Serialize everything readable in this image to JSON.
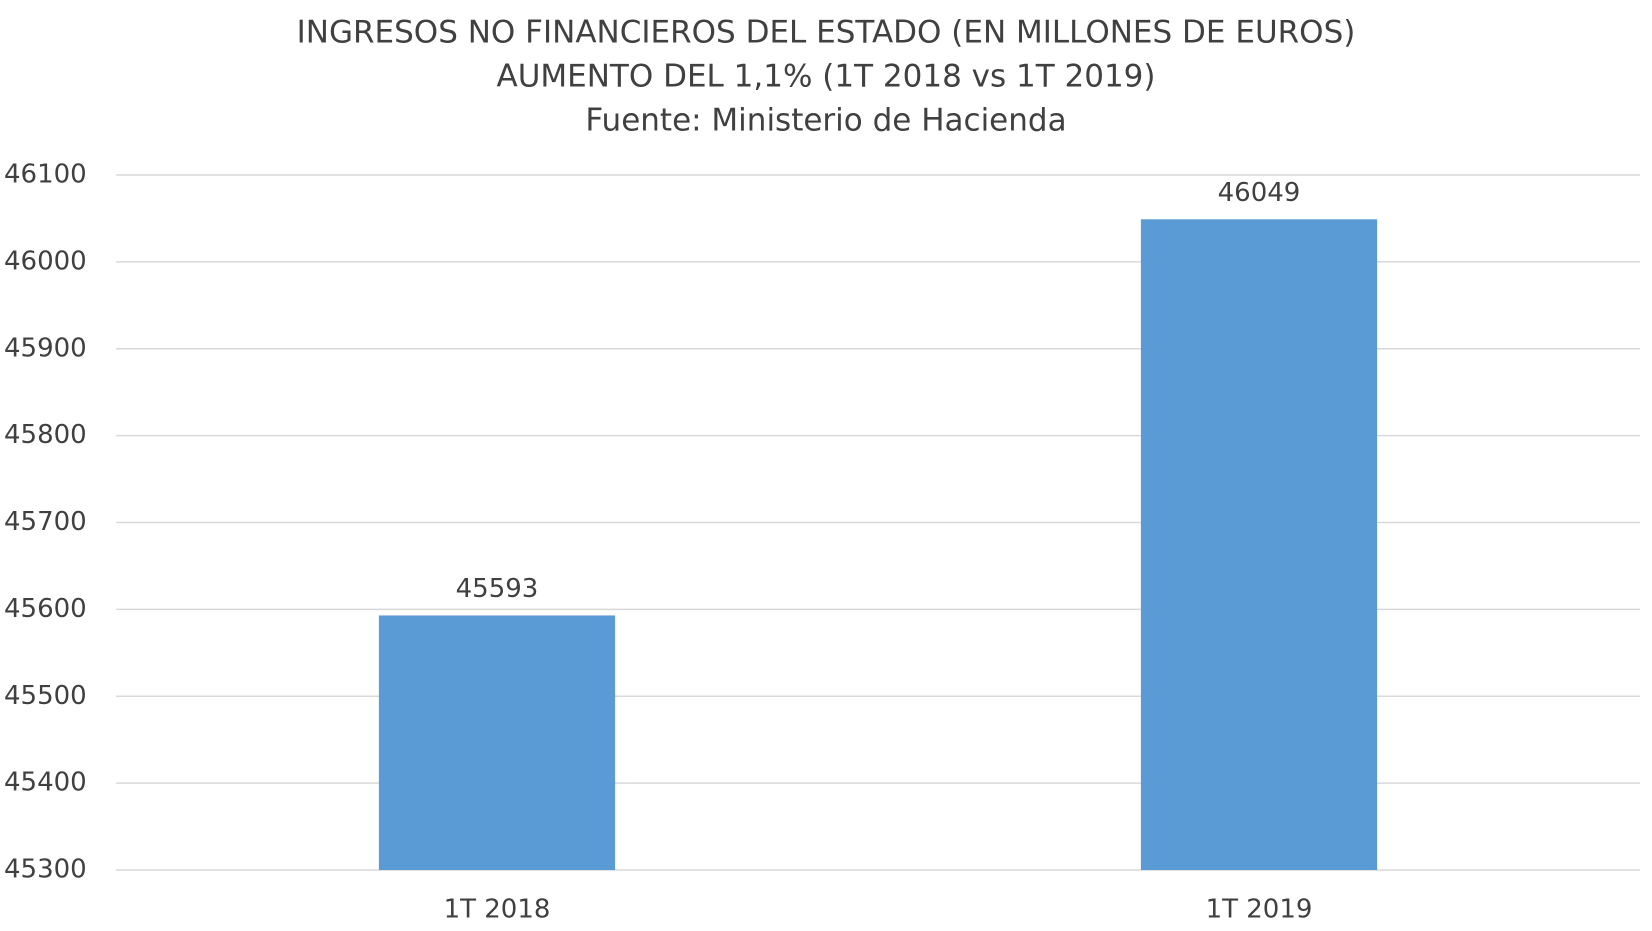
{
  "chart_data": {
    "type": "bar",
    "title": "INGRESOS NO FINANCIEROS DEL ESTADO (EN MILLONES DE EUROS)",
    "subtitle": "AUMENTO DEL 1,1% (1T 2018 vs 1T 2019)",
    "source": "Fuente: Ministerio de Hacienda",
    "categories": [
      "1T 2018",
      "1T 2019"
    ],
    "values": [
      45593,
      46049
    ],
    "color": "#5b9bd5",
    "ylim": [
      45300,
      46100
    ],
    "yticks": [
      45300,
      45400,
      45500,
      45600,
      45700,
      45800,
      45900,
      46000,
      46100
    ],
    "grid": true
  }
}
